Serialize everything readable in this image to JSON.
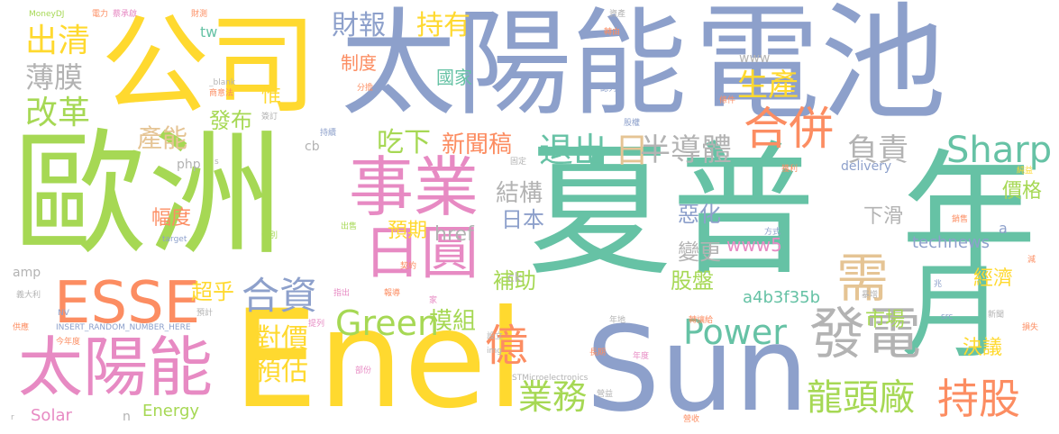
{
  "palette": {
    "green": "#A6D854",
    "teal": "#66C2A5",
    "blue": "#8DA0CB",
    "yellow": "#FFD92F",
    "pink": "#E78AC3",
    "orange": "#FC8D62",
    "tan": "#E5C494",
    "gray": "#B3B3B3"
  },
  "words": [
    {
      "text": "歐洲",
      "color": "#A6D854"
    },
    {
      "text": "夏普",
      "color": "#66C2A5"
    },
    {
      "text": "太陽能",
      "color": "#8DA0CB"
    },
    {
      "text": "電池",
      "color": "#8DA0CB"
    },
    {
      "text": "公司",
      "color": "#FFD92F"
    },
    {
      "text": "Enel",
      "color": "#FFD92F"
    },
    {
      "text": "Sun",
      "color": "#8DA0CB"
    },
    {
      "text": "年",
      "color": "#66C2A5"
    },
    {
      "text": "月",
      "color": "#66C2A5"
    },
    {
      "text": "事業",
      "color": "#E78AC3"
    },
    {
      "text": "日圓",
      "color": "#E78AC3"
    },
    {
      "text": "太陽能",
      "color": "#E78AC3"
    },
    {
      "text": "ESSE",
      "color": "#FC8D62"
    },
    {
      "text": "發電",
      "color": "#B3B3B3"
    },
    {
      "text": "需",
      "color": "#E5C494"
    },
    {
      "text": "持股",
      "color": "#FC8D62"
    },
    {
      "text": "合併",
      "color": "#FC8D62"
    },
    {
      "text": "Sharp",
      "color": "#66C2A5"
    },
    {
      "text": "Green",
      "color": "#A6D854"
    },
    {
      "text": "合資",
      "color": "#8DA0CB"
    },
    {
      "text": "億",
      "color": "#FC8D62"
    },
    {
      "text": "Power",
      "color": "#66C2A5"
    },
    {
      "text": "龍頭廠",
      "color": "#A6D854"
    },
    {
      "text": "業務",
      "color": "#A6D854"
    },
    {
      "text": "退出",
      "color": "#66C2A5"
    },
    {
      "text": "日",
      "color": "#E5C494"
    },
    {
      "text": "半導體",
      "color": "#B3B3B3"
    },
    {
      "text": "負責",
      "color": "#B3B3B3"
    },
    {
      "text": "出清",
      "color": "#FFD92F"
    },
    {
      "text": "薄膜",
      "color": "#B3B3B3"
    },
    {
      "text": "改革",
      "color": "#A6D854"
    },
    {
      "text": "財報",
      "color": "#8DA0CB"
    },
    {
      "text": "持有",
      "color": "#FFD92F"
    },
    {
      "text": "生產",
      "color": "#FFD92F"
    },
    {
      "text": "產能",
      "color": "#E5C494"
    },
    {
      "text": "吃下",
      "color": "#A6D854"
    },
    {
      "text": "新聞稿",
      "color": "#FC8D62"
    },
    {
      "text": "對價",
      "color": "#FFD92F"
    },
    {
      "text": "預估",
      "color": "#FFD92F"
    },
    {
      "text": "超乎",
      "color": "#FFD92F"
    },
    {
      "text": "模組",
      "color": "#A6D854"
    },
    {
      "text": "發布",
      "color": "#A6D854"
    },
    {
      "text": "結構",
      "color": "#B3B3B3"
    },
    {
      "text": "日本",
      "color": "#8DA0CB"
    },
    {
      "text": "惡化",
      "color": "#8DA0CB"
    },
    {
      "text": "價格",
      "color": "#A6D854"
    },
    {
      "text": "下滑",
      "color": "#B3B3B3"
    },
    {
      "text": "technews",
      "color": "#8DA0CB"
    },
    {
      "text": "經濟",
      "color": "#FFD92F"
    },
    {
      "text": "市場",
      "color": "#A6D854"
    },
    {
      "text": "決議",
      "color": "#FFD92F"
    },
    {
      "text": "股盤",
      "color": "#A6D854"
    },
    {
      "text": "變更",
      "color": "#B3B3B3"
    },
    {
      "text": "補助",
      "color": "#A6D854"
    },
    {
      "text": "www5",
      "color": "#E78AC3"
    },
    {
      "text": "a4b3f35b",
      "color": "#66C2A5"
    },
    {
      "text": "Energy",
      "color": "#A6D854"
    },
    {
      "text": "Solar",
      "color": "#E78AC3"
    },
    {
      "text": "預期",
      "color": "#FFD92F"
    },
    {
      "text": "href",
      "color": "#B3B3B3"
    },
    {
      "text": "幅度",
      "color": "#FC8D62"
    },
    {
      "text": "國家",
      "color": "#66C2A5"
    },
    {
      "text": "制度",
      "color": "#FC8D62"
    },
    {
      "text": "惟",
      "color": "#FFD92F"
    },
    {
      "text": "www",
      "color": "#B3B3B3"
    },
    {
      "text": "tw",
      "color": "#66C2A5"
    },
    {
      "text": "php",
      "color": "#B3B3B3"
    },
    {
      "text": "cb",
      "color": "#B3B3B3"
    },
    {
      "text": "delivery",
      "color": "#8DA0CB"
    },
    {
      "text": "amp",
      "color": "#B3B3B3"
    },
    {
      "text": "ck",
      "color": "#B3B3B3"
    },
    {
      "text": "a",
      "color": "#8DA0CB"
    },
    {
      "text": "n",
      "color": "#B3B3B3"
    },
    {
      "text": "MoneyDJ",
      "color": "#A6D854"
    },
    {
      "text": "電力",
      "color": "#FC8D62"
    },
    {
      "text": "蔡承啟",
      "color": "#E78AC3"
    },
    {
      "text": "財測",
      "color": "#FC8D62"
    },
    {
      "text": "資產",
      "color": "#B3B3B3"
    },
    {
      "text": "轉由",
      "color": "#FC8D62"
    },
    {
      "text": "_blank",
      "color": "#B3B3B3"
    },
    {
      "text": "商意法",
      "color": "#FC8D62"
    },
    {
      "text": "分擔",
      "color": "#FC8D62"
    },
    {
      "text": "認列",
      "color": "#8DA0CB"
    },
    {
      "text": "條件",
      "color": "#FC8D62"
    },
    {
      "text": "股權",
      "color": "#8DA0CB"
    },
    {
      "text": "簽訂",
      "color": "#B3B3B3"
    },
    {
      "text": "持續",
      "color": "#8DA0CB"
    },
    {
      "text": "固定",
      "color": "#B3B3B3"
    },
    {
      "text": "s",
      "color": "#B3B3B3"
    },
    {
      "text": "獲利",
      "color": "#FC8D62"
    },
    {
      "text": "純益",
      "color": "#FFD92F"
    },
    {
      "text": "銷售",
      "color": "#FC8D62"
    },
    {
      "text": "target",
      "color": "#8DA0CB"
    },
    {
      "text": "特別",
      "color": "#A6D854"
    },
    {
      "text": "出售",
      "color": "#A6D854"
    },
    {
      "text": "方式",
      "color": "#8DA0CB"
    },
    {
      "text": "減",
      "color": "#FC8D62"
    },
    {
      "text": "契約",
      "color": "#FC8D62"
    },
    {
      "text": "報導",
      "color": "#FC8D62"
    },
    {
      "text": "家",
      "color": "#E78AC3"
    },
    {
      "text": "指出",
      "color": "#E78AC3"
    },
    {
      "text": "義大利",
      "color": "#B3B3B3"
    },
    {
      "text": "NV",
      "color": "#8DA0CB"
    },
    {
      "text": "預計",
      "color": "#B3B3B3"
    },
    {
      "text": "INSERT_RANDOM_NUMBER_HERE",
      "color": "#8DA0CB"
    },
    {
      "text": "提列",
      "color": "#E78AC3"
    },
    {
      "text": "設立",
      "color": "#B3B3B3"
    },
    {
      "text": "年地",
      "color": "#B3B3B3"
    },
    {
      "text": "轉讓給",
      "color": "#FC8D62"
    },
    {
      "text": "暴增",
      "color": "#B3B3B3"
    },
    {
      "text": "兆",
      "color": "#8DA0CB"
    },
    {
      "text": "src",
      "color": "#8DA0CB"
    },
    {
      "text": "損失",
      "color": "#FC8D62"
    },
    {
      "text": "新聞",
      "color": "#B3B3B3"
    },
    {
      "text": "供應",
      "color": "#FC8D62"
    },
    {
      "text": "今年度",
      "color": "#FC8D62"
    },
    {
      "text": "img",
      "color": "#B3B3B3"
    },
    {
      "text": "長期",
      "color": "#FC8D62"
    },
    {
      "text": "年度",
      "color": "#E78AC3"
    },
    {
      "text": "部份",
      "color": "#E78AC3"
    },
    {
      "text": "STMicroelectronics",
      "color": "#B3B3B3"
    },
    {
      "text": "營益",
      "color": "#B3B3B3"
    },
    {
      "text": "營收",
      "color": "#FC8D62"
    },
    {
      "text": "r",
      "color": "#B3B3B3"
    }
  ]
}
